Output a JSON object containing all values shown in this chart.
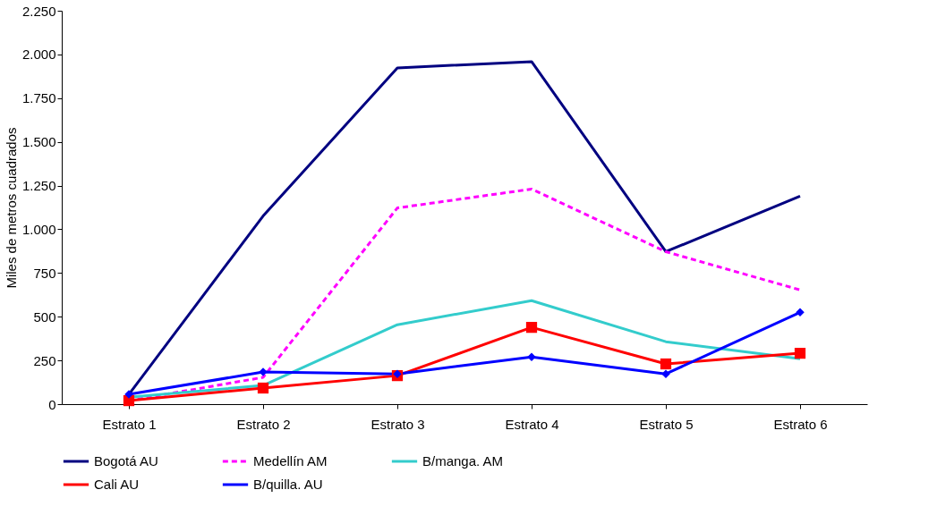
{
  "chart_data": {
    "type": "line",
    "ylabel": "Miles de metros cuadrados",
    "categories": [
      "Estrato 1",
      "Estrato 2",
      "Estrato 3",
      "Estrato 4",
      "Estrato 5",
      "Estrato 6"
    ],
    "series": [
      {
        "name": "Bogotá  AU",
        "color": "#000080",
        "values": [
          56,
          1076,
          1923,
          1959,
          872,
          1189
        ],
        "marker": "none",
        "line_style": "solid"
      },
      {
        "name": "Medellín  AM",
        "color": "#ff00ff",
        "values": [
          20,
          153,
          1122,
          1230,
          872,
          653
        ],
        "marker": "none",
        "line_style": "dashed"
      },
      {
        "name": "B/manga.  AM",
        "color": "#33cccc",
        "values": [
          40,
          107,
          454,
          592,
          357,
          260
        ],
        "marker": "none",
        "line_style": "solid"
      },
      {
        "name": "Cali  AU",
        "color": "#ff0000",
        "values": [
          20,
          92,
          163,
          439,
          230,
          291
        ],
        "marker": "square",
        "line_style": "solid"
      },
      {
        "name": "B/quilla.  AU",
        "color": "#0000ff",
        "values": [
          56,
          184,
          173,
          270,
          173,
          525
        ],
        "marker": "diamond",
        "line_style": "solid"
      }
    ],
    "ylim": [
      0,
      2250
    ],
    "yticks": [
      0,
      250,
      500,
      750,
      {
        "value": 1000,
        "label": "1.000"
      },
      {
        "value": 1250,
        "label": "1.250"
      },
      {
        "value": 1500,
        "label": "1.500"
      },
      {
        "value": 1750,
        "label": "1.750"
      },
      {
        "value": 2000,
        "label": "2.000"
      },
      {
        "value": 2250,
        "label": "2.250"
      }
    ],
    "grid": false,
    "legend": "bottom"
  }
}
